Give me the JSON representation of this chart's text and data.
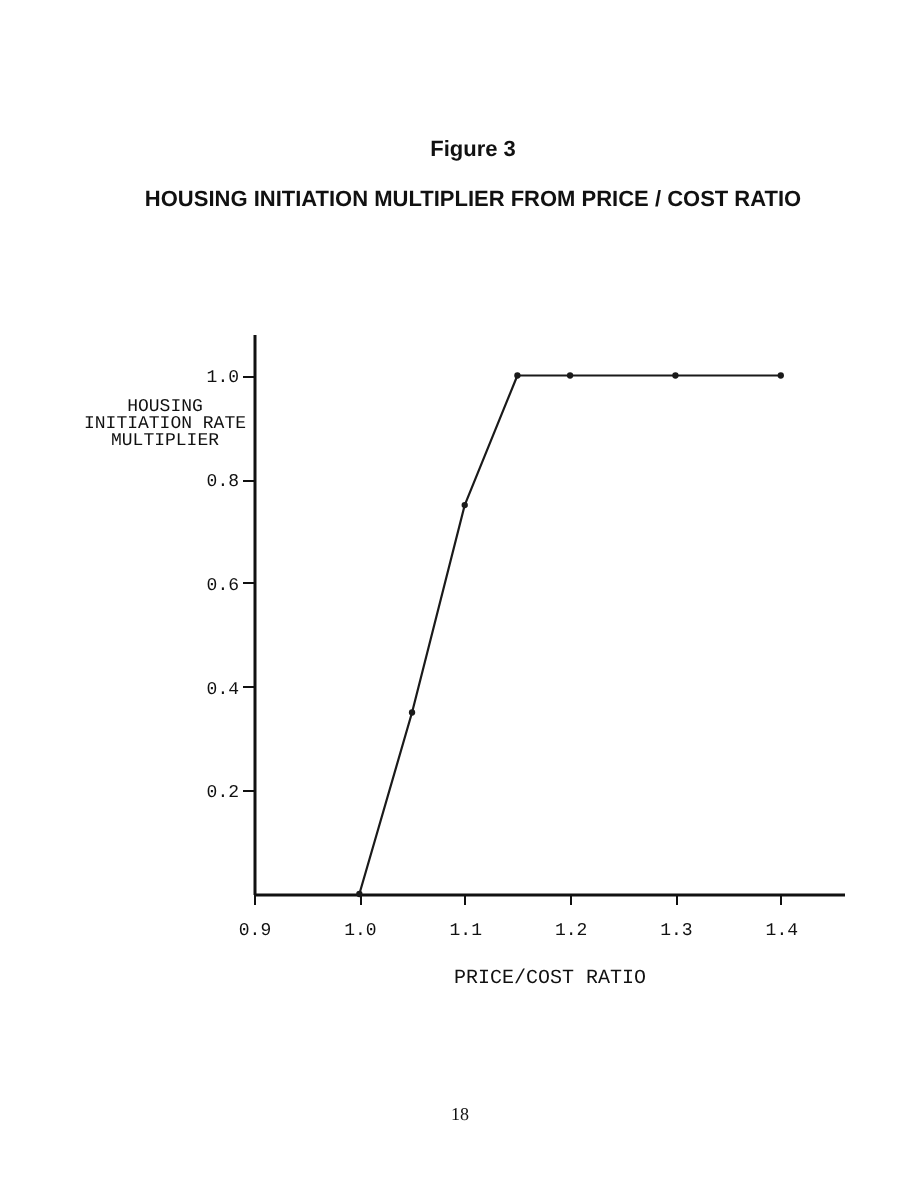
{
  "chart_data": {
    "type": "line",
    "title": "Figure 3",
    "subtitle": "HOUSING INITIATION MULTIPLIER FROM PRICE / COST RATIO",
    "xlabel": "PRICE/COST RATIO",
    "ylabel": "HOUSING\nINITIATION RATE\nMULTIPLIER",
    "x": [
      1.0,
      1.05,
      1.1,
      1.15,
      1.2,
      1.3,
      1.4
    ],
    "series": [
      {
        "color": "#1a1a1a",
        "values": [
          0,
          0.35,
          0.75,
          1.0,
          1.0,
          1.0,
          1.0
        ]
      }
    ],
    "xlim": [
      0.9,
      1.46
    ],
    "ylim": [
      0,
      1.08
    ],
    "xticks": [
      0.9,
      {
        "value": 1,
        "label": "1.0"
      },
      1.1,
      1.2,
      1.3,
      1.4
    ],
    "yticks": [
      0.2,
      0.4,
      0.6,
      0.8,
      {
        "value": 1,
        "label": "1.0"
      }
    ],
    "marker": "circle",
    "line_style": "solid",
    "grid": false,
    "annotations": [
      "18"
    ]
  }
}
